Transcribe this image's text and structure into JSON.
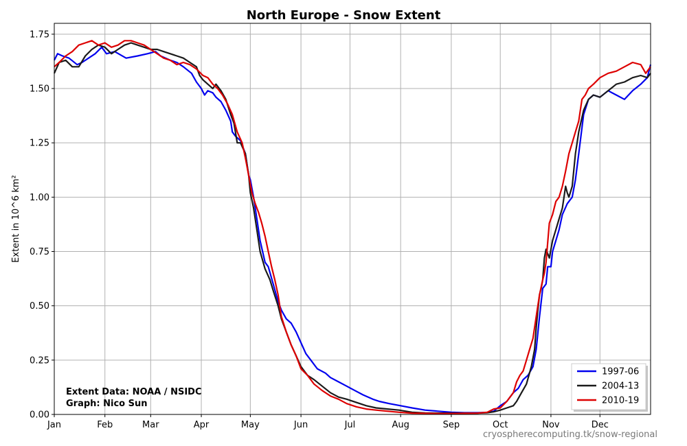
{
  "chart_data": {
    "type": "line",
    "title": "North Europe - Snow Extent",
    "ylabel": "Extent in 10^6 km²",
    "xlim": [
      1,
      366
    ],
    "ylim": [
      0,
      1.8
    ],
    "grid": true,
    "legend_position": "bottom-right",
    "x_ticks": [
      {
        "label": "Jan",
        "day": 1
      },
      {
        "label": "Feb",
        "day": 32
      },
      {
        "label": "Mar",
        "day": 60
      },
      {
        "label": "Apr",
        "day": 91
      },
      {
        "label": "May",
        "day": 121
      },
      {
        "label": "Jun",
        "day": 152
      },
      {
        "label": "Jul",
        "day": 182
      },
      {
        "label": "Aug",
        "day": 213
      },
      {
        "label": "Sep",
        "day": 244
      },
      {
        "label": "Oct",
        "day": 274
      },
      {
        "label": "Nov",
        "day": 305
      },
      {
        "label": "Dec",
        "day": 335
      }
    ],
    "y_ticks": [
      {
        "label": "0.00",
        "value": 0
      },
      {
        "label": "0.25",
        "value": 0.25
      },
      {
        "label": "0.50",
        "value": 0.5
      },
      {
        "label": "0.75",
        "value": 0.75
      },
      {
        "label": "1.00",
        "value": 1.0
      },
      {
        "label": "1.25",
        "value": 1.25
      },
      {
        "label": "1.50",
        "value": 1.5
      },
      {
        "label": "1.75",
        "value": 1.75
      }
    ],
    "series": [
      {
        "name": "1997-06",
        "color": "#0000ee",
        "x": [
          1,
          3,
          6,
          10,
          15,
          18,
          22,
          26,
          30,
          33,
          38,
          45,
          52,
          58,
          63,
          66,
          72,
          76,
          80,
          85,
          88,
          91,
          93,
          95,
          98,
          100,
          103,
          106,
          109,
          110,
          112,
          115,
          118,
          120,
          121,
          123,
          125,
          127,
          130,
          132,
          135,
          138,
          140,
          143,
          146,
          149,
          152,
          155,
          158,
          162,
          167,
          170,
          175,
          180,
          185,
          190,
          196,
          200,
          206,
          213,
          220,
          228,
          236,
          244,
          252,
          260,
          266,
          270,
          274,
          278,
          282,
          285,
          288,
          291,
          294,
          296,
          298,
          300,
          302,
          303,
          305,
          306,
          308,
          310,
          312,
          315,
          318,
          320,
          322,
          325,
          328,
          331,
          335,
          340,
          345,
          350,
          355,
          360,
          364,
          366
        ],
        "y": [
          1.63,
          1.66,
          1.65,
          1.64,
          1.61,
          1.62,
          1.64,
          1.66,
          1.69,
          1.66,
          1.67,
          1.64,
          1.65,
          1.66,
          1.67,
          1.65,
          1.63,
          1.62,
          1.6,
          1.57,
          1.53,
          1.5,
          1.47,
          1.49,
          1.48,
          1.46,
          1.44,
          1.4,
          1.35,
          1.3,
          1.28,
          1.26,
          1.2,
          1.1,
          1.08,
          1.0,
          0.9,
          0.8,
          0.7,
          0.68,
          0.6,
          0.52,
          0.48,
          0.44,
          0.42,
          0.38,
          0.33,
          0.28,
          0.25,
          0.21,
          0.19,
          0.17,
          0.15,
          0.13,
          0.11,
          0.09,
          0.07,
          0.06,
          0.05,
          0.04,
          0.03,
          0.02,
          0.015,
          0.01,
          0.008,
          0.008,
          0.009,
          0.015,
          0.04,
          0.06,
          0.1,
          0.12,
          0.16,
          0.18,
          0.22,
          0.3,
          0.45,
          0.58,
          0.6,
          0.68,
          0.68,
          0.75,
          0.8,
          0.85,
          0.92,
          0.97,
          1.0,
          1.08,
          1.2,
          1.38,
          1.45,
          1.47,
          1.46,
          1.49,
          1.47,
          1.45,
          1.49,
          1.52,
          1.55,
          1.61
        ]
      },
      {
        "name": "2004-13",
        "color": "#1a1a1a",
        "x": [
          1,
          4,
          8,
          12,
          16,
          20,
          24,
          28,
          32,
          36,
          40,
          44,
          48,
          52,
          56,
          60,
          64,
          68,
          72,
          76,
          80,
          84,
          88,
          90,
          92,
          95,
          98,
          100,
          103,
          106,
          109,
          111,
          113,
          115,
          118,
          120,
          121,
          123,
          125,
          127,
          130,
          133,
          135,
          138,
          140,
          143,
          146,
          149,
          152,
          156,
          160,
          165,
          170,
          175,
          180,
          186,
          192,
          198,
          205,
          212,
          220,
          228,
          236,
          244,
          252,
          260,
          266,
          270,
          274,
          278,
          282,
          284,
          287,
          290,
          293,
          295,
          296,
          297,
          298,
          299,
          300,
          301,
          302,
          304,
          306,
          308,
          310,
          312,
          314,
          315,
          316,
          318,
          320,
          322,
          325,
          328,
          331,
          335,
          340,
          345,
          350,
          355,
          360,
          364,
          366
        ],
        "y": [
          1.57,
          1.62,
          1.63,
          1.6,
          1.6,
          1.65,
          1.68,
          1.7,
          1.69,
          1.66,
          1.68,
          1.7,
          1.71,
          1.7,
          1.69,
          1.68,
          1.68,
          1.67,
          1.66,
          1.65,
          1.64,
          1.62,
          1.6,
          1.56,
          1.54,
          1.52,
          1.5,
          1.52,
          1.49,
          1.45,
          1.38,
          1.34,
          1.25,
          1.25,
          1.2,
          1.1,
          1.02,
          0.95,
          0.85,
          0.75,
          0.67,
          0.62,
          0.57,
          0.5,
          0.44,
          0.38,
          0.32,
          0.27,
          0.22,
          0.18,
          0.16,
          0.13,
          0.1,
          0.08,
          0.07,
          0.055,
          0.04,
          0.03,
          0.025,
          0.02,
          0.01,
          0.007,
          0.006,
          0.006,
          0.006,
          0.006,
          0.008,
          0.012,
          0.02,
          0.03,
          0.04,
          0.06,
          0.1,
          0.14,
          0.22,
          0.3,
          0.4,
          0.48,
          0.55,
          0.58,
          0.62,
          0.72,
          0.76,
          0.72,
          0.8,
          0.85,
          0.9,
          0.95,
          1.05,
          1.02,
          1.0,
          1.05,
          1.2,
          1.3,
          1.4,
          1.45,
          1.47,
          1.46,
          1.49,
          1.52,
          1.53,
          1.55,
          1.56,
          1.55,
          1.57
        ]
      },
      {
        "name": "2010-19",
        "color": "#dd0000",
        "x": [
          1,
          4,
          8,
          12,
          16,
          20,
          24,
          28,
          32,
          36,
          40,
          44,
          48,
          52,
          56,
          60,
          64,
          68,
          72,
          76,
          80,
          84,
          88,
          92,
          95,
          98,
          101,
          104,
          107,
          110,
          113,
          116,
          118,
          120,
          122,
          124,
          126,
          128,
          130,
          132,
          134,
          136,
          138,
          140,
          143,
          146,
          149,
          152,
          156,
          160,
          165,
          170,
          175,
          180,
          186,
          192,
          198,
          205,
          212,
          220,
          228,
          236,
          244,
          252,
          260,
          266,
          270,
          274,
          278,
          282,
          284,
          286,
          288,
          290,
          292,
          294,
          296,
          298,
          300,
          301,
          302,
          304,
          306,
          308,
          310,
          312,
          314,
          316,
          318,
          320,
          322,
          324,
          326,
          328,
          331,
          335,
          340,
          345,
          350,
          355,
          360,
          363,
          366
        ],
        "y": [
          1.6,
          1.62,
          1.65,
          1.67,
          1.7,
          1.71,
          1.72,
          1.7,
          1.71,
          1.69,
          1.7,
          1.72,
          1.72,
          1.71,
          1.7,
          1.68,
          1.66,
          1.64,
          1.63,
          1.61,
          1.62,
          1.61,
          1.59,
          1.56,
          1.55,
          1.52,
          1.5,
          1.47,
          1.43,
          1.38,
          1.3,
          1.25,
          1.18,
          1.1,
          1.02,
          0.97,
          0.93,
          0.88,
          0.82,
          0.75,
          0.68,
          0.62,
          0.55,
          0.45,
          0.38,
          0.32,
          0.27,
          0.21,
          0.18,
          0.14,
          0.11,
          0.085,
          0.07,
          0.05,
          0.035,
          0.025,
          0.02,
          0.015,
          0.01,
          0.006,
          0.005,
          0.004,
          0.004,
          0.005,
          0.006,
          0.01,
          0.025,
          0.03,
          0.06,
          0.1,
          0.15,
          0.18,
          0.2,
          0.25,
          0.3,
          0.35,
          0.45,
          0.55,
          0.62,
          0.65,
          0.7,
          0.88,
          0.92,
          0.98,
          1.0,
          1.05,
          1.12,
          1.2,
          1.25,
          1.3,
          1.35,
          1.45,
          1.47,
          1.5,
          1.52,
          1.55,
          1.57,
          1.58,
          1.6,
          1.62,
          1.61,
          1.57,
          1.6
        ]
      }
    ],
    "annotations": [
      "Extent Data: NOAA / NSIDC",
      "Graph: Nico Sun"
    ],
    "source": "cryospherecomputing.tk/snow-regional"
  }
}
